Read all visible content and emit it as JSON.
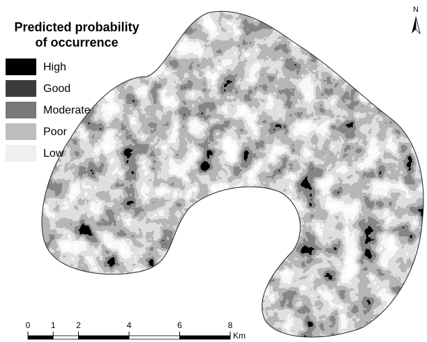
{
  "title": [
    "Predicted probability",
    "of occurrence"
  ],
  "legend": [
    {
      "label": "High",
      "color": "#000000"
    },
    {
      "label": "Good",
      "color": "#3c3c3c"
    },
    {
      "label": "Moderate",
      "color": "#787878"
    },
    {
      "label": "Poor",
      "color": "#bdbdbd"
    },
    {
      "label": "Low",
      "color": "#efefef"
    }
  ],
  "scale_bar": {
    "ticks": [
      0,
      1,
      2,
      4,
      6,
      8
    ],
    "unit": "Km"
  },
  "north": "N"
}
